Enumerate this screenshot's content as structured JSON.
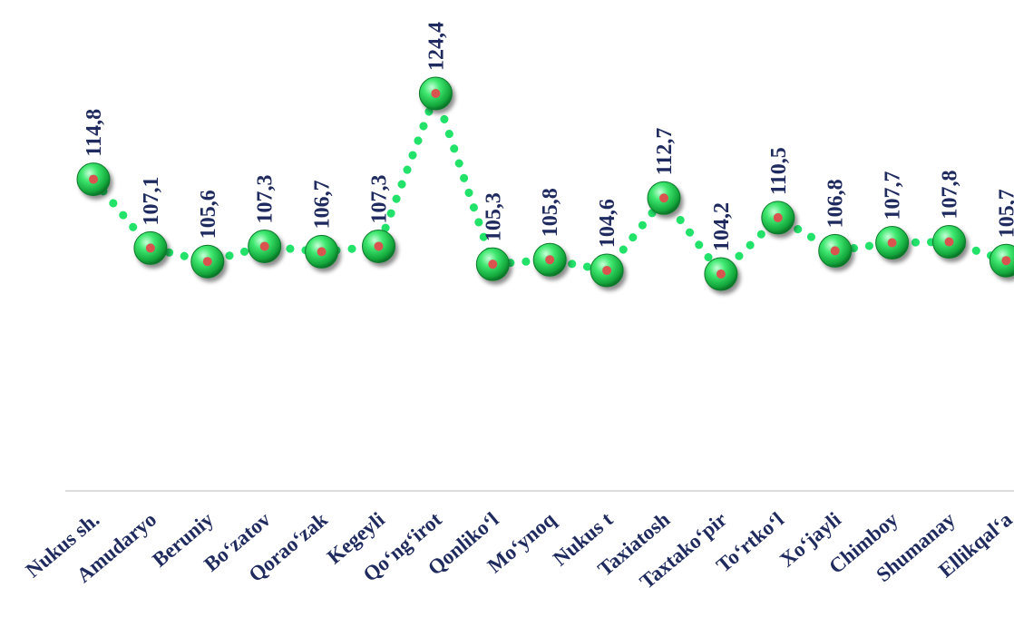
{
  "chart_data": {
    "type": "line",
    "categories": [
      "Nukus sh.",
      "Amudaryo",
      "Beruniy",
      "Bo‘zatov",
      "Qorao‘zak",
      "Kegeyli",
      "Qo‘ng‘irot",
      "Qonliko‘l",
      "Mo‘ynoq",
      "Nukus t",
      "Taxiatosh",
      "Taxtako‘pir",
      "To‘rtko‘l",
      "Xo‘jayli",
      "Chimboy",
      "Shumanay",
      "Ellikqal‘a"
    ],
    "values": [
      114.8,
      107.1,
      105.6,
      107.3,
      106.7,
      107.3,
      124.4,
      105.3,
      105.8,
      104.6,
      112.7,
      104.2,
      110.5,
      106.8,
      107.7,
      107.8,
      105.7
    ],
    "data_labels": [
      "114,8",
      "107,1",
      "105,6",
      "107,3",
      "106,7",
      "107,3",
      "124,4",
      "105,3",
      "105,8",
      "104,6",
      "112,7",
      "104,2",
      "110,5",
      "106,8",
      "107,7",
      "107,8",
      "105,7"
    ],
    "title": "",
    "xlabel": "",
    "ylabel": "",
    "grid": false,
    "legend": "none",
    "colors": {
      "line": "#22e26a",
      "marker": "#2fd45a",
      "marker_center": "#d9534f",
      "text": "#1f2a5e",
      "axis": "#d0d0d0"
    }
  }
}
